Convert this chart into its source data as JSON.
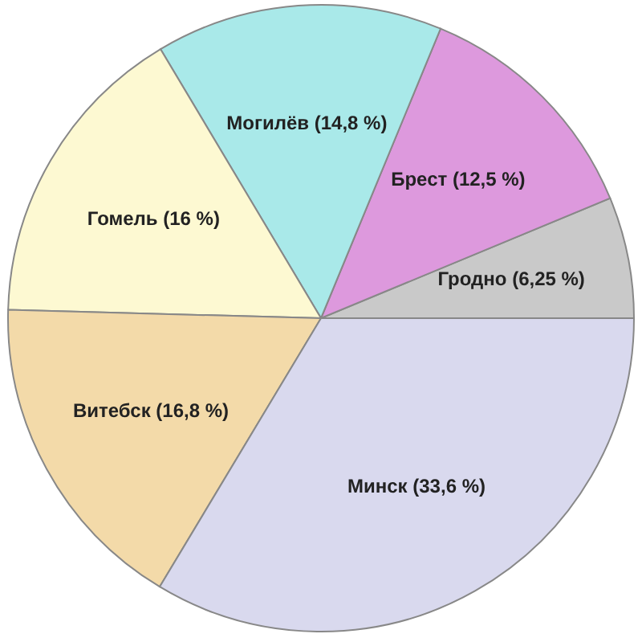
{
  "chart_data": {
    "type": "pie",
    "categories": [
      "Гродно",
      "Брест",
      "Могилёв",
      "Гомель",
      "Витебск",
      "Минск"
    ],
    "values": [
      6.25,
      12.5,
      14.8,
      16,
      16.8,
      33.6
    ],
    "value_labels": [
      "(6,25 %)",
      "(12,5 %)",
      "(14,8 %)",
      "(16 %)",
      "(16,8 %)",
      "(33,6 %)"
    ],
    "colors": [
      "#c9c9c9",
      "#dd99dd",
      "#a9e9e9",
      "#fdf9d2",
      "#f3daa9",
      "#d9d9ee"
    ]
  }
}
